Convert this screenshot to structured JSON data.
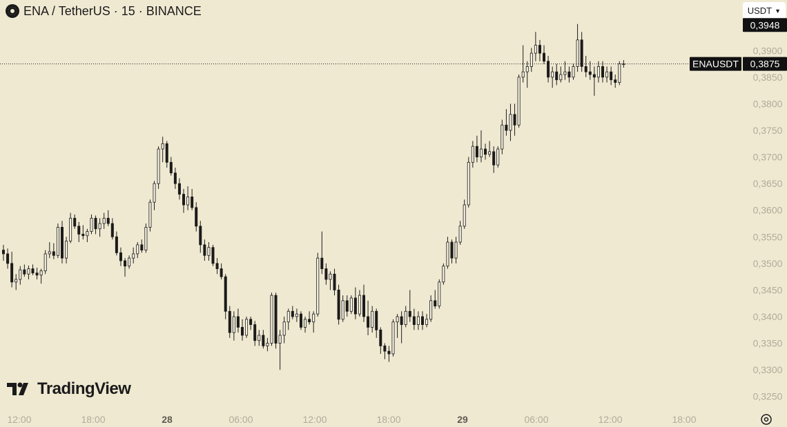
{
  "header": {
    "title": "ENA / TetherUS · 15 · BINANCE",
    "logo_icon": "ena-logo-icon"
  },
  "currency_button": {
    "label": "USDT",
    "icon": "chevron-down-icon"
  },
  "watermark": {
    "text": "TradingView",
    "icon": "tradingview-logo-icon"
  },
  "settings_icon": "settings-gear-icon",
  "chart_data": {
    "type": "candlestick",
    "symbol": "ENAUSDT",
    "ylim": [
      0.3225,
      0.3995
    ],
    "y_ticks": [
      0.39,
      0.385,
      0.38,
      0.375,
      0.37,
      0.365,
      0.36,
      0.355,
      0.35,
      0.345,
      0.34,
      0.335,
      0.33,
      0.325
    ],
    "y_tick_labels": [
      "0,3900",
      "0,3850",
      "0,3800",
      "0,3750",
      "0,3700",
      "0,3650",
      "0,3600",
      "0,3550",
      "0,3500",
      "0,3450",
      "0,3400",
      "0,3350",
      "0,3300",
      "0,3250"
    ],
    "x_ticks": [
      {
        "label": "12:00",
        "day": false
      },
      {
        "label": "18:00",
        "day": false
      },
      {
        "label": "28",
        "day": true
      },
      {
        "label": "06:00",
        "day": false
      },
      {
        "label": "12:00",
        "day": false
      },
      {
        "label": "18:00",
        "day": false
      },
      {
        "label": "29",
        "day": true
      },
      {
        "label": "06:00",
        "day": false
      },
      {
        "label": "12:00",
        "day": false
      },
      {
        "label": "18:00",
        "day": false
      }
    ],
    "current_price": 0.3875,
    "current_price_label": "0,3875",
    "high_marker": 0.3948,
    "high_marker_label": "0,3948",
    "price_line_label": "ENAUSDT",
    "interval_minutes": 15,
    "candles": [
      [
        0.3525,
        0.3535,
        0.3505,
        0.3518
      ],
      [
        0.3518,
        0.3528,
        0.349,
        0.35
      ],
      [
        0.35,
        0.3522,
        0.3455,
        0.3465
      ],
      [
        0.3465,
        0.348,
        0.345,
        0.347
      ],
      [
        0.347,
        0.3495,
        0.346,
        0.3488
      ],
      [
        0.3488,
        0.3498,
        0.3475,
        0.348
      ],
      [
        0.348,
        0.3496,
        0.347,
        0.349
      ],
      [
        0.349,
        0.3498,
        0.3478,
        0.3482
      ],
      [
        0.3482,
        0.3492,
        0.347,
        0.3478
      ],
      [
        0.3478,
        0.349,
        0.3462,
        0.3486
      ],
      [
        0.3486,
        0.3525,
        0.348,
        0.3518
      ],
      [
        0.3518,
        0.354,
        0.351,
        0.3522
      ],
      [
        0.3522,
        0.3538,
        0.3508,
        0.3515
      ],
      [
        0.3515,
        0.3575,
        0.351,
        0.3568
      ],
      [
        0.3568,
        0.358,
        0.35,
        0.351
      ],
      [
        0.351,
        0.355,
        0.35,
        0.3542
      ],
      [
        0.3542,
        0.3595,
        0.3538,
        0.3585
      ],
      [
        0.3585,
        0.3592,
        0.3565,
        0.357
      ],
      [
        0.357,
        0.3578,
        0.354,
        0.3555
      ],
      [
        0.3555,
        0.3572,
        0.3545,
        0.3552
      ],
      [
        0.3552,
        0.3565,
        0.354,
        0.356
      ],
      [
        0.356,
        0.3592,
        0.3555,
        0.3585
      ],
      [
        0.3585,
        0.359,
        0.3555,
        0.3565
      ],
      [
        0.3565,
        0.3585,
        0.355,
        0.3575
      ],
      [
        0.3575,
        0.3595,
        0.3565,
        0.3585
      ],
      [
        0.3585,
        0.36,
        0.357,
        0.3575
      ],
      [
        0.3575,
        0.3585,
        0.3545,
        0.355
      ],
      [
        0.355,
        0.356,
        0.3515,
        0.352
      ],
      [
        0.352,
        0.353,
        0.3495,
        0.3505
      ],
      [
        0.3505,
        0.351,
        0.3475,
        0.3495
      ],
      [
        0.3495,
        0.3515,
        0.349,
        0.351
      ],
      [
        0.351,
        0.353,
        0.35,
        0.3518
      ],
      [
        0.3518,
        0.354,
        0.351,
        0.3535
      ],
      [
        0.3535,
        0.3545,
        0.352,
        0.3525
      ],
      [
        0.3525,
        0.3575,
        0.352,
        0.3568
      ],
      [
        0.3568,
        0.362,
        0.356,
        0.3615
      ],
      [
        0.3615,
        0.3655,
        0.36,
        0.365
      ],
      [
        0.365,
        0.372,
        0.364,
        0.3715
      ],
      [
        0.3715,
        0.3738,
        0.369,
        0.3725
      ],
      [
        0.3725,
        0.373,
        0.368,
        0.369
      ],
      [
        0.369,
        0.37,
        0.3665,
        0.367
      ],
      [
        0.367,
        0.368,
        0.364,
        0.365
      ],
      [
        0.365,
        0.366,
        0.362,
        0.363
      ],
      [
        0.363,
        0.364,
        0.3595,
        0.361
      ],
      [
        0.361,
        0.3645,
        0.36,
        0.3625
      ],
      [
        0.3625,
        0.364,
        0.36,
        0.3605
      ],
      [
        0.3605,
        0.3615,
        0.356,
        0.357
      ],
      [
        0.357,
        0.358,
        0.352,
        0.3535
      ],
      [
        0.3535,
        0.3545,
        0.3505,
        0.3515
      ],
      [
        0.3515,
        0.354,
        0.3505,
        0.353
      ],
      [
        0.353,
        0.3535,
        0.3495,
        0.35
      ],
      [
        0.35,
        0.351,
        0.348,
        0.349
      ],
      [
        0.349,
        0.35,
        0.347,
        0.3475
      ],
      [
        0.3475,
        0.348,
        0.3395,
        0.341
      ],
      [
        0.341,
        0.342,
        0.336,
        0.337
      ],
      [
        0.337,
        0.341,
        0.3355,
        0.34
      ],
      [
        0.34,
        0.3415,
        0.337,
        0.338
      ],
      [
        0.338,
        0.3395,
        0.3355,
        0.3365
      ],
      [
        0.3365,
        0.34,
        0.336,
        0.3395
      ],
      [
        0.3395,
        0.34,
        0.3375,
        0.3385
      ],
      [
        0.3385,
        0.3392,
        0.3345,
        0.3355
      ],
      [
        0.3355,
        0.3375,
        0.3345,
        0.3365
      ],
      [
        0.3365,
        0.3375,
        0.334,
        0.3345
      ],
      [
        0.3345,
        0.336,
        0.3335,
        0.335
      ],
      [
        0.335,
        0.3445,
        0.3345,
        0.344
      ],
      [
        0.344,
        0.3445,
        0.334,
        0.335
      ],
      [
        0.335,
        0.3375,
        0.33,
        0.3365
      ],
      [
        0.3365,
        0.34,
        0.335,
        0.339
      ],
      [
        0.339,
        0.3415,
        0.3375,
        0.341
      ],
      [
        0.341,
        0.342,
        0.3395,
        0.34
      ],
      [
        0.34,
        0.3415,
        0.339,
        0.3405
      ],
      [
        0.3405,
        0.341,
        0.3375,
        0.338
      ],
      [
        0.338,
        0.34,
        0.337,
        0.3395
      ],
      [
        0.3395,
        0.341,
        0.3385,
        0.339
      ],
      [
        0.339,
        0.341,
        0.337,
        0.3405
      ],
      [
        0.3405,
        0.352,
        0.34,
        0.351
      ],
      [
        0.351,
        0.356,
        0.348,
        0.349
      ],
      [
        0.349,
        0.35,
        0.346,
        0.347
      ],
      [
        0.347,
        0.3485,
        0.345,
        0.348
      ],
      [
        0.348,
        0.349,
        0.344,
        0.345
      ],
      [
        0.345,
        0.346,
        0.3385,
        0.3395
      ],
      [
        0.3395,
        0.344,
        0.339,
        0.343
      ],
      [
        0.343,
        0.344,
        0.34,
        0.341
      ],
      [
        0.341,
        0.344,
        0.3405,
        0.3435
      ],
      [
        0.3435,
        0.3455,
        0.3395,
        0.3405
      ],
      [
        0.3405,
        0.345,
        0.34,
        0.344
      ],
      [
        0.344,
        0.346,
        0.339,
        0.34
      ],
      [
        0.34,
        0.343,
        0.3365,
        0.338
      ],
      [
        0.338,
        0.342,
        0.337,
        0.341
      ],
      [
        0.341,
        0.3415,
        0.336,
        0.3375
      ],
      [
        0.3375,
        0.338,
        0.333,
        0.3345
      ],
      [
        0.3345,
        0.335,
        0.332,
        0.3335
      ],
      [
        0.3335,
        0.3345,
        0.3315,
        0.333
      ],
      [
        0.333,
        0.3395,
        0.3325,
        0.339
      ],
      [
        0.339,
        0.3405,
        0.336,
        0.34
      ],
      [
        0.34,
        0.341,
        0.335,
        0.3385
      ],
      [
        0.3385,
        0.342,
        0.338,
        0.341
      ],
      [
        0.341,
        0.345,
        0.339,
        0.34
      ],
      [
        0.34,
        0.3415,
        0.3375,
        0.3385
      ],
      [
        0.3385,
        0.341,
        0.3375,
        0.34
      ],
      [
        0.34,
        0.341,
        0.3375,
        0.3385
      ],
      [
        0.3385,
        0.3405,
        0.338,
        0.3395
      ],
      [
        0.3395,
        0.344,
        0.339,
        0.343
      ],
      [
        0.343,
        0.345,
        0.3415,
        0.342
      ],
      [
        0.342,
        0.347,
        0.3415,
        0.3465
      ],
      [
        0.3465,
        0.35,
        0.346,
        0.3495
      ],
      [
        0.3495,
        0.355,
        0.349,
        0.354
      ],
      [
        0.354,
        0.3545,
        0.35,
        0.351
      ],
      [
        0.351,
        0.355,
        0.35,
        0.354
      ],
      [
        0.354,
        0.358,
        0.3535,
        0.357
      ],
      [
        0.357,
        0.362,
        0.3565,
        0.361
      ],
      [
        0.361,
        0.37,
        0.3605,
        0.369
      ],
      [
        0.369,
        0.373,
        0.368,
        0.372
      ],
      [
        0.372,
        0.374,
        0.369,
        0.37
      ],
      [
        0.37,
        0.375,
        0.369,
        0.3715
      ],
      [
        0.3715,
        0.3725,
        0.3695,
        0.3705
      ],
      [
        0.3705,
        0.373,
        0.37,
        0.371
      ],
      [
        0.371,
        0.372,
        0.367,
        0.3685
      ],
      [
        0.3685,
        0.372,
        0.368,
        0.3715
      ],
      [
        0.3715,
        0.377,
        0.3705,
        0.376
      ],
      [
        0.376,
        0.379,
        0.374,
        0.375
      ],
      [
        0.375,
        0.38,
        0.373,
        0.378
      ],
      [
        0.378,
        0.38,
        0.374,
        0.376
      ],
      [
        0.376,
        0.3855,
        0.3755,
        0.385
      ],
      [
        0.385,
        0.391,
        0.384,
        0.386
      ],
      [
        0.386,
        0.388,
        0.383,
        0.387
      ],
      [
        0.387,
        0.3905,
        0.386,
        0.3895
      ],
      [
        0.3895,
        0.3935,
        0.388,
        0.391
      ],
      [
        0.391,
        0.392,
        0.388,
        0.3895
      ],
      [
        0.3895,
        0.391,
        0.3875,
        0.388
      ],
      [
        0.388,
        0.389,
        0.384,
        0.385
      ],
      [
        0.385,
        0.387,
        0.383,
        0.386
      ],
      [
        0.386,
        0.3875,
        0.3835,
        0.3845
      ],
      [
        0.3845,
        0.387,
        0.384,
        0.3855
      ],
      [
        0.3855,
        0.388,
        0.3845,
        0.386
      ],
      [
        0.386,
        0.387,
        0.384,
        0.385
      ],
      [
        0.385,
        0.3875,
        0.3845,
        0.387
      ],
      [
        0.387,
        0.395,
        0.386,
        0.392
      ],
      [
        0.392,
        0.3935,
        0.386,
        0.387
      ],
      [
        0.387,
        0.389,
        0.385,
        0.386
      ],
      [
        0.386,
        0.388,
        0.3845,
        0.3855
      ],
      [
        0.3855,
        0.387,
        0.3815,
        0.385
      ],
      [
        0.385,
        0.388,
        0.384,
        0.387
      ],
      [
        0.387,
        0.388,
        0.384,
        0.385
      ],
      [
        0.385,
        0.387,
        0.384,
        0.386
      ],
      [
        0.386,
        0.387,
        0.3835,
        0.3845
      ],
      [
        0.3845,
        0.3855,
        0.383,
        0.384
      ],
      [
        0.384,
        0.388,
        0.3835,
        0.3875
      ],
      [
        0.3875,
        0.3882,
        0.3868,
        0.3875
      ]
    ]
  }
}
